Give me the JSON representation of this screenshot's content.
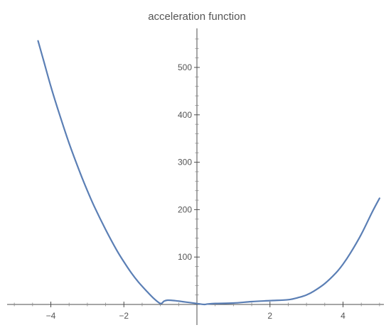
{
  "chart_data": {
    "type": "line",
    "title": "acceleration function",
    "xlabel": "",
    "ylabel": "",
    "xlim": [
      -5.2,
      5.2
    ],
    "ylim": [
      -12,
      590
    ],
    "x_ticks": [
      -4,
      -2,
      2,
      4
    ],
    "y_ticks": [
      100,
      200,
      300,
      400,
      500
    ],
    "x_tick_labels": [
      "-4",
      "-2",
      "2",
      "4"
    ],
    "y_tick_labels": [
      "100",
      "200",
      "300",
      "400",
      "500"
    ],
    "grid": false,
    "legend": "none",
    "series_color": "#5b7fb5",
    "series": [
      {
        "x": [
          -4.35,
          -4.2,
          -4.0,
          -3.8,
          -3.5,
          -3.2,
          -3.0,
          -2.8,
          -2.5,
          -2.2,
          -2.0,
          -1.8,
          -1.6,
          -1.4,
          -1.2,
          -1.0,
          -0.9,
          -0.8,
          -0.6,
          -0.4,
          -0.2,
          0.0,
          0.2,
          0.3,
          0.5,
          1.0,
          1.5,
          2.0,
          2.5,
          2.8,
          3.0,
          3.2,
          3.5,
          3.8,
          4.0,
          4.2,
          4.5,
          4.8,
          5.0
        ],
        "y": [
          556,
          515,
          460,
          410,
          340,
          278,
          240,
          205,
          158,
          115,
          90,
          67,
          47,
          30,
          14,
          2,
          7,
          9,
          8,
          6,
          4,
          2,
          0,
          1,
          2,
          3,
          6,
          8,
          10,
          15,
          20,
          28,
          44,
          66,
          85,
          108,
          148,
          195,
          224
        ]
      }
    ]
  }
}
